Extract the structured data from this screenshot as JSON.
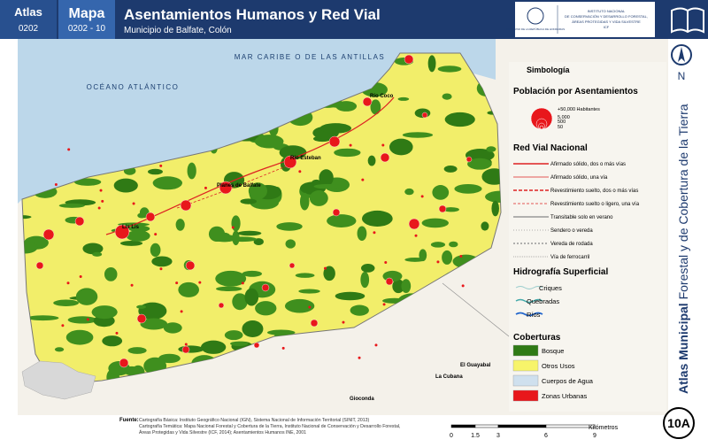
{
  "header": {
    "atlas_label": "Atlas",
    "atlas_code": "0202",
    "map_label": "Mapa",
    "map_code": "0202 - 10",
    "title": "Asentamientos Humanos y Red Vial",
    "subtitle": "Municipio de Balfate, Colón",
    "logo_left": "GOBIERNO DE LA REPÚBLICA DE HONDURAS",
    "logo_right": [
      "INSTITUTO NACIONAL",
      "DE CONSERVACIÓN Y DESARROLLO FORESTAL,",
      "ÁREAS PROTEGIDAS Y VIDA SILVESTRE",
      "ICF"
    ]
  },
  "map": {
    "sea_labels": [
      "MAR CARIBE O DE LAS ANTILLAS",
      "OCÉANO ATLÁNTICO"
    ],
    "places": [
      "Río Coco",
      "Río Esteban",
      "Planes de Balfate",
      "Lis Lis",
      "El Guayabal",
      "La Cubana",
      "Gioconda"
    ]
  },
  "legend": {
    "title": "Simbología",
    "population": {
      "title": "Población por Asentamientos",
      "sizes": [
        "+50,000 Habitantes",
        "5,000",
        "500",
        "50"
      ]
    },
    "roads": {
      "title": "Red Vial Nacional",
      "items": [
        "Afirmado sólido, dos o más vías",
        "Afirmado sólido, una vía",
        "Revestimiento suelto, dos o más vías",
        "Revestimiento suelto o ligero, una vía",
        "Transitable solo en verano",
        "Sendero o vereda",
        "Vereda de rodada",
        "Vía de ferrocarril"
      ]
    },
    "hydro": {
      "title": "Hidrografía Superficial",
      "items": [
        "Criques",
        "Quebradas",
        "Ríos"
      ]
    },
    "cover": {
      "title": "Coberturas",
      "items": [
        "Bosque",
        "Otros Usos",
        "Cuerpos de Agua",
        "Zonas Urbanas"
      ]
    }
  },
  "side": {
    "north": "N",
    "title_bold": "Atlas Municipal",
    "title_rest": " Forestal y de Cobertura de la Tierra",
    "sheet": "10A"
  },
  "footer": {
    "source_label": "Fuente:",
    "sources": [
      "Cartografía Básica: Instituto Geográfico Nacional (IGN), Sistema Nacional de Información Territorial (SINIT, 2013)",
      "Cartografía Temática: Mapa Nacional Forestal y Cobertura de la Tierra, Instituto Nacional de Conservación y Desarrollo Forestal,",
      "Áreas Protegidas y Vida Silvestre (ICF, 2014); Asentamientos Humanos INE, 2001"
    ],
    "scale_ticks": [
      "0",
      "1.5",
      "3",
      "6",
      "9"
    ],
    "scale_unit": "Kilómetros"
  }
}
